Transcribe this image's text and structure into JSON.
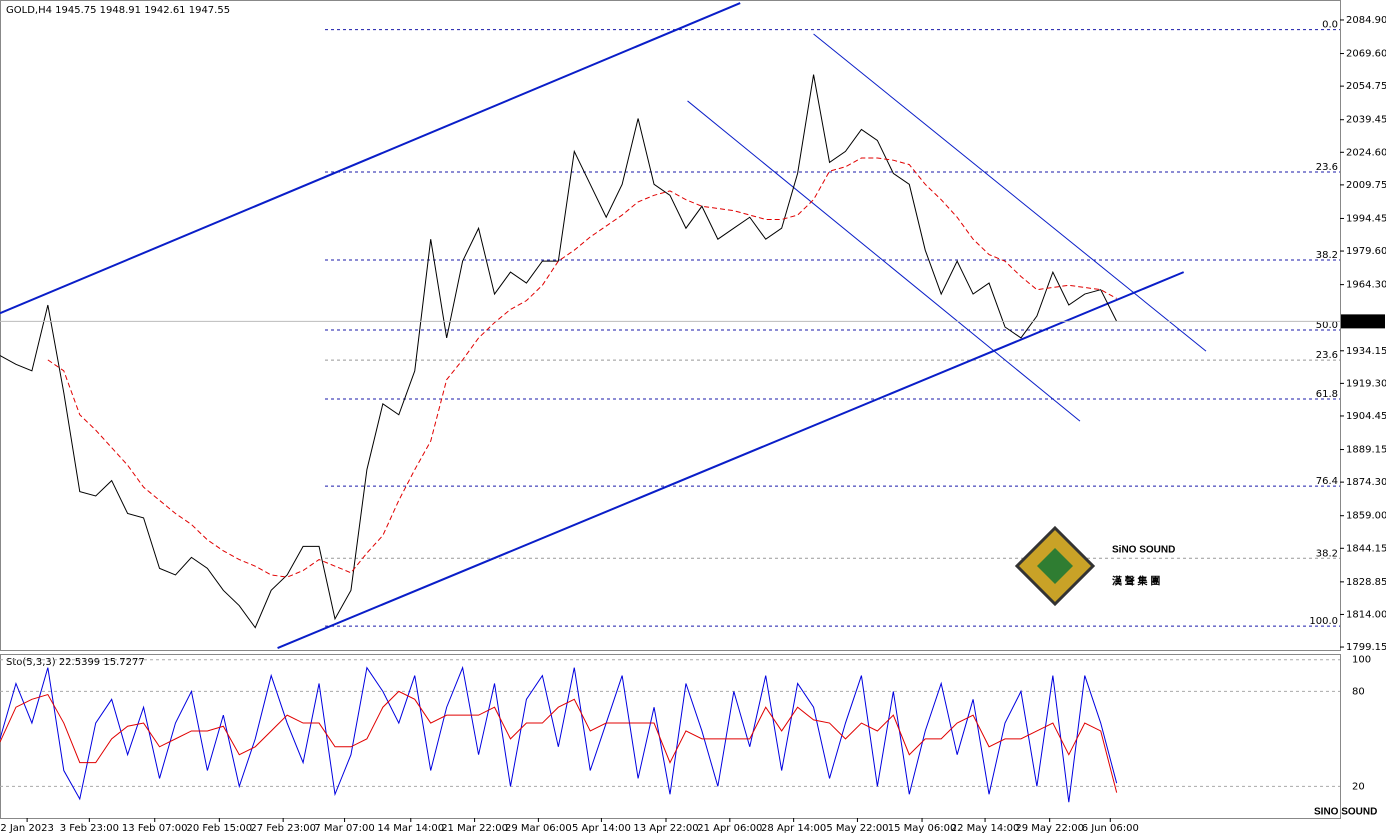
{
  "chart_data": [
    {
      "type": "line",
      "title": "GOLD,H4  1945.75 1948.91 1942.61 1947.55",
      "xlim": [
        0,
        84
      ],
      "xticks": [
        {
          "value": 1.7,
          "label": "2 Jan 2023"
        },
        {
          "value": 5.6,
          "label": "3 Feb 23:00"
        },
        {
          "value": 9.7,
          "label": "13 Feb 07:00"
        },
        {
          "value": 13.75,
          "label": "20 Feb 15:00"
        },
        {
          "value": 17.75,
          "label": "27 Feb 23:00"
        },
        {
          "value": 21.6,
          "label": "7 Mar 07:00"
        },
        {
          "value": 25.75,
          "label": "14 Mar 14:00"
        },
        {
          "value": 29.75,
          "label": "21 Mar 22:00"
        },
        {
          "value": 33.75,
          "label": "29 Mar 06:00"
        },
        {
          "value": 37.7,
          "label": "5 Apr 14:00"
        },
        {
          "value": 41.75,
          "label": "13 Apr 22:00"
        },
        {
          "value": 45.75,
          "label": "21 Apr 06:00"
        },
        {
          "value": 49.75,
          "label": "28 Apr 14:00"
        },
        {
          "value": 53.75,
          "label": "5 May 22:00"
        },
        {
          "value": 57.8,
          "label": "15 May 06:00"
        },
        {
          "value": 61.75,
          "label": "22 May 14:00"
        },
        {
          "value": 65.8,
          "label": "29 May 22:00"
        },
        {
          "value": 69.6,
          "label": "6 Jun 06:00"
        }
      ],
      "ylim": [
        1797.8,
        2094.0
      ],
      "yticks": [
        {
          "value": 2084.9,
          "label": "2084.90"
        },
        {
          "value": 2069.6,
          "label": "2069.60"
        },
        2054.75,
        2039.45,
        {
          "value": 2024.6,
          "label": "2024.60"
        },
        2009.75,
        1994.45,
        {
          "value": 1979.6,
          "label": "1979.60"
        },
        {
          "value": 1964.3,
          "label": "1964.30"
        },
        1934.15,
        {
          "value": 1919.3,
          "label": "1919.30"
        },
        1904.45,
        1889.15,
        {
          "value": 1874.3,
          "label": "1874.30"
        },
        {
          "value": 1859.0,
          "label": "1859.00"
        },
        1844.15,
        1828.85,
        {
          "value": 1814.0,
          "label": "1814.00"
        },
        1799.15
      ],
      "last_price": 1947.55,
      "series": [
        {
          "color": "#000000",
          "values": [
            1932,
            1928,
            1925,
            1955,
            1915,
            1870,
            1868,
            1875,
            1860,
            1858,
            1835,
            1832,
            1840,
            1835,
            1825,
            1818,
            1808,
            1825,
            1832,
            1845,
            1845,
            1812,
            1825,
            1880,
            1910,
            1905,
            1925,
            1985,
            1940,
            1975,
            1990,
            1960,
            1970,
            1965,
            1975,
            1975,
            2025,
            2010,
            1995,
            2010,
            2040,
            2010,
            2005,
            1990,
            2000,
            1985,
            1990,
            1995,
            1985,
            1990,
            2015,
            2060,
            2020,
            2025,
            2035,
            2030,
            2015,
            2010,
            1980,
            1960,
            1975,
            1960,
            1965,
            1945,
            1940,
            1950,
            1970,
            1955,
            1960,
            1962,
            1947.55
          ]
        },
        {
          "color": "#e00000",
          "dashed": true,
          "values": [
            null,
            null,
            null,
            1930,
            1925,
            1905,
            1898,
            1890,
            1882,
            1872,
            1866,
            1860,
            1855,
            1848,
            1843,
            1839,
            1836,
            1832,
            1831,
            1834,
            1839,
            1836,
            1833,
            1842,
            1850,
            1866,
            1880,
            1893,
            1921,
            1930,
            1940,
            1947,
            1953,
            1957,
            1964,
            1975,
            1980,
            1986,
            1991,
            1996,
            2002,
            2005,
            2007,
            2003,
            2000,
            1999,
            1998,
            1996,
            1994,
            1994,
            1996,
            2003,
            2016,
            2018,
            2022,
            2022,
            2021,
            2019,
            2010,
            2003,
            1995,
            1985,
            1978,
            1975,
            1968,
            1962,
            1963,
            1964,
            1963,
            1962,
            1958
          ]
        }
      ],
      "fib_levels": [
        {
          "value": 2080.5,
          "label": "0.0",
          "color": "#1a1aaa"
        },
        {
          "value": 2015.6,
          "label": "23.6",
          "color": "#1a1aaa"
        },
        {
          "value": 1975.5,
          "label": "38.2",
          "color": "#1a1aaa"
        },
        {
          "value": 1943.6,
          "label": "50.0",
          "color": "#1a1aaa"
        },
        {
          "value": 1912.2,
          "label": "61.8",
          "color": "#1a1aaa"
        },
        {
          "value": 1872.5,
          "label": "76.4",
          "color": "#1a1aaa"
        },
        {
          "value": 1808.7,
          "label": "100.0",
          "color": "#1a1aaa"
        },
        {
          "value": 1929.9,
          "label": "23.6",
          "color": "#999999"
        },
        {
          "value": 1839.6,
          "label": "38.2",
          "color": "#999999"
        }
      ],
      "trendlines": [
        {
          "x": [
            0,
            46.4
          ],
          "y": [
            1951.3,
            2092.6
          ],
          "color": "#0a1ec8",
          "width": 2
        },
        {
          "x": [
            17.4,
            74.2
          ],
          "y": [
            1798.7,
            1970.0
          ],
          "color": "#0a1ec8",
          "width": 2
        },
        {
          "x": [
            43.1,
            67.7
          ],
          "y": [
            2048.0,
            1902.1
          ],
          "color": "#0a1ec8",
          "width": 1
        },
        {
          "x": [
            51.0,
            75.6
          ],
          "y": [
            2078.5,
            1934.0
          ],
          "color": "#0a1ec8",
          "width": 1
        }
      ],
      "logo": {
        "name": "SiNO SOUND",
        "chinese": "漢 聲 集 團",
        "small": "SINO SOUND"
      }
    },
    {
      "type": "stochastic",
      "title": "Sto(5,3,3) 22.5399 15.7277",
      "ylim": [
        0,
        103
      ],
      "yticks": [
        100,
        80,
        20
      ],
      "series": [
        {
          "color": "#0000e0",
          "values": [
            50,
            85,
            60,
            95,
            30,
            12,
            60,
            75,
            40,
            70,
            25,
            60,
            80,
            30,
            65,
            20,
            50,
            90,
            60,
            35,
            85,
            15,
            40,
            95,
            80,
            60,
            90,
            30,
            70,
            95,
            40,
            85,
            20,
            75,
            90,
            45,
            95,
            30,
            60,
            90,
            25,
            70,
            15,
            85,
            55,
            20,
            80,
            45,
            90,
            30,
            85,
            70,
            25,
            60,
            90,
            20,
            80,
            15,
            55,
            85,
            40,
            75,
            15,
            60,
            80,
            20,
            90,
            10,
            90,
            60,
            22
          ]
        },
        {
          "color": "#e00000",
          "values": [
            48,
            70,
            75,
            78,
            60,
            35,
            35,
            50,
            58,
            60,
            45,
            50,
            55,
            55,
            58,
            40,
            45,
            55,
            65,
            60,
            60,
            45,
            45,
            50,
            70,
            80,
            75,
            60,
            65,
            65,
            65,
            70,
            50,
            60,
            60,
            70,
            75,
            55,
            60,
            60,
            60,
            60,
            35,
            55,
            50,
            50,
            50,
            50,
            70,
            55,
            70,
            62,
            60,
            50,
            60,
            55,
            65,
            40,
            50,
            50,
            60,
            65,
            45,
            50,
            50,
            55,
            60,
            40,
            60,
            55,
            16
          ]
        }
      ]
    }
  ]
}
